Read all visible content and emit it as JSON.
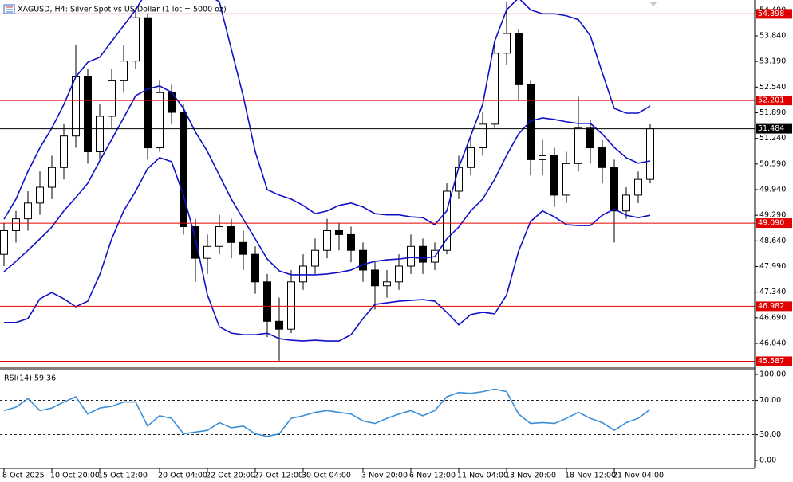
{
  "chart_data": [
    {
      "type": "candlestick",
      "title": "XAGUSD, H4:  Silver Spot vs US Dollar (1 lot = 5000 oz)",
      "categories": [
        "8 Oct 2025",
        null,
        null,
        null,
        "10 Oct 20:00",
        null,
        null,
        null,
        "15 Oct 12:00",
        null,
        null,
        null,
        null,
        "20 Oct 04:00",
        null,
        null,
        null,
        "22 Oct 20:00",
        null,
        null,
        null,
        "27 Oct 12:00",
        null,
        null,
        null,
        "30 Oct 04:00",
        null,
        null,
        null,
        null,
        "3 Nov 20:00",
        null,
        null,
        null,
        "6 Nov 12:00",
        null,
        null,
        null,
        "11 Nov 04:00",
        null,
        null,
        null,
        "13 Nov 20:00",
        null,
        null,
        null,
        null,
        "18 Nov 12:00",
        null,
        null,
        null,
        "21 Nov 04:00",
        null,
        null,
        null
      ],
      "open": [
        48.3,
        48.9,
        49.2,
        49.6,
        50.0,
        50.5,
        51.3,
        52.8,
        50.9,
        51.8,
        52.7,
        53.2,
        54.3,
        51.0,
        52.4,
        51.9,
        49.0,
        48.2,
        48.5,
        49.0,
        48.6,
        48.3,
        47.6,
        46.6,
        46.4,
        47.6,
        48.0,
        48.4,
        48.9,
        48.8,
        48.4,
        47.9,
        47.5,
        47.6,
        48.0,
        48.5,
        48.1,
        48.4,
        49.9,
        50.5,
        51.0,
        51.6,
        53.4,
        53.9,
        52.6,
        50.7,
        50.8,
        49.8,
        50.6,
        51.5,
        51.0,
        50.5,
        49.4,
        49.8,
        50.2
      ],
      "high": [
        49.1,
        49.4,
        49.9,
        50.4,
        50.8,
        51.6,
        53.6,
        53.0,
        52.1,
        53.0,
        53.6,
        54.55,
        54.4,
        52.7,
        52.6,
        52.1,
        49.2,
        48.8,
        49.3,
        49.2,
        48.9,
        48.5,
        47.8,
        47.2,
        47.9,
        48.3,
        48.7,
        49.2,
        49.1,
        49.0,
        48.6,
        48.1,
        47.9,
        48.3,
        48.8,
        48.7,
        48.6,
        50.1,
        50.8,
        51.3,
        51.9,
        53.6,
        54.7,
        54.0,
        52.7,
        51.2,
        51.0,
        50.9,
        52.3,
        51.7,
        51.2,
        50.7,
        50.0,
        50.4,
        51.6
      ],
      "low": [
        48.0,
        48.6,
        48.9,
        49.3,
        49.7,
        50.2,
        51.0,
        50.6,
        50.7,
        51.5,
        52.4,
        53.0,
        50.7,
        50.9,
        51.6,
        48.8,
        47.6,
        47.8,
        48.3,
        48.2,
        47.9,
        47.3,
        46.2,
        45.6,
        46.3,
        47.4,
        47.8,
        48.2,
        48.4,
        48.1,
        47.6,
        46.9,
        47.2,
        47.4,
        47.8,
        47.8,
        47.9,
        48.3,
        49.7,
        50.3,
        50.8,
        51.5,
        53.1,
        52.2,
        50.3,
        50.3,
        49.5,
        49.6,
        50.4,
        50.6,
        50.1,
        48.6,
        49.2,
        49.6,
        50.1
      ],
      "close": [
        48.9,
        49.2,
        49.6,
        50.0,
        50.5,
        51.3,
        52.8,
        50.9,
        51.8,
        52.7,
        53.2,
        54.3,
        51.0,
        52.4,
        51.9,
        49.0,
        48.2,
        48.5,
        49.0,
        48.6,
        48.3,
        47.6,
        46.6,
        46.4,
        47.6,
        48.0,
        48.4,
        48.9,
        48.8,
        48.4,
        47.9,
        47.5,
        47.6,
        48.0,
        48.5,
        48.1,
        48.4,
        49.9,
        50.5,
        51.0,
        51.6,
        53.4,
        53.9,
        52.6,
        50.7,
        50.8,
        49.8,
        50.6,
        51.5,
        51.0,
        50.5,
        49.4,
        49.8,
        50.2,
        51.484
      ],
      "bands": {
        "color": "#1010c8",
        "upper": [
          49.19,
          49.7,
          50.4,
          51.0,
          51.5,
          52.1,
          52.8,
          53.17,
          53.3,
          53.7,
          54.1,
          54.5,
          55.0,
          55.1,
          55.1,
          55.0,
          54.9,
          54.9,
          54.7,
          53.5,
          52.3,
          50.9,
          49.94,
          49.8,
          49.7,
          49.54,
          49.33,
          49.4,
          49.54,
          49.6,
          49.5,
          49.33,
          49.3,
          49.3,
          49.25,
          49.23,
          49.05,
          49.4,
          50.5,
          51.3,
          52.1,
          53.7,
          54.5,
          54.8,
          54.5,
          54.4,
          54.4,
          54.35,
          54.25,
          53.84,
          52.9,
          52.0,
          51.88,
          51.88,
          52.06
        ],
        "middle": [
          47.86,
          48.12,
          48.4,
          48.69,
          48.99,
          49.4,
          49.74,
          50.1,
          50.67,
          51.21,
          51.76,
          52.32,
          52.49,
          52.57,
          52.41,
          52.0,
          51.4,
          50.91,
          50.3,
          49.7,
          49.19,
          48.69,
          48.18,
          47.88,
          47.78,
          47.78,
          47.78,
          47.8,
          47.84,
          47.9,
          48.04,
          48.12,
          48.16,
          48.18,
          48.22,
          48.2,
          48.24,
          48.69,
          48.99,
          49.4,
          49.7,
          50.2,
          50.81,
          51.35,
          51.68,
          51.76,
          51.72,
          51.66,
          51.62,
          51.62,
          51.35,
          51.01,
          50.75,
          50.61,
          50.67
        ],
        "lower": [
          46.57,
          46.57,
          46.67,
          47.17,
          47.33,
          47.17,
          46.97,
          47.11,
          47.78,
          48.69,
          49.4,
          49.9,
          50.47,
          50.75,
          50.65,
          49.8,
          48.69,
          47.27,
          46.46,
          46.3,
          46.26,
          46.26,
          46.3,
          46.16,
          46.12,
          46.1,
          46.12,
          46.1,
          46.1,
          46.26,
          46.67,
          47.03,
          47.07,
          47.11,
          47.13,
          47.15,
          47.11,
          46.83,
          46.51,
          46.77,
          46.83,
          46.79,
          47.27,
          48.38,
          49.13,
          49.4,
          49.25,
          49.05,
          49.03,
          49.03,
          49.29,
          49.45,
          49.29,
          49.23,
          49.29
        ]
      },
      "up_color": "#ffffff",
      "down_color": "#000000",
      "wick_color": "#000000",
      "levels": [
        54.398,
        52.201,
        {
          "value": 49.09,
          "label": "49.090"
        },
        46.982,
        45.587
      ],
      "level_color": "#e00000",
      "current_price": 51.484,
      "current_color": "#000000",
      "ylim": [
        45.414,
        54.749
      ],
      "yticks": [
        {
          "value": 54.49,
          "label": "54.490"
        },
        {
          "value": 53.84,
          "label": "53.840"
        },
        {
          "value": 53.19,
          "label": "53.190"
        },
        {
          "value": 52.54,
          "label": "52.540"
        },
        {
          "value": 51.89,
          "label": "51.890"
        },
        {
          "value": 51.24,
          "label": "51.240"
        },
        {
          "value": 50.59,
          "label": "50.590"
        },
        {
          "value": 49.94,
          "label": "49.940"
        },
        {
          "value": 49.29,
          "label": "49.290"
        },
        {
          "value": 48.64,
          "label": "48.640"
        },
        {
          "value": 47.99,
          "label": "47.990"
        },
        {
          "value": 47.34,
          "label": "47.340"
        },
        {
          "value": 46.69,
          "label": "46.690"
        },
        {
          "value": 46.04,
          "label": "46.040"
        }
      ]
    },
    {
      "type": "line",
      "title": "RSI(14) 59.36",
      "color": "#3a8fd8",
      "values": [
        58,
        62,
        72,
        58,
        61,
        68,
        74,
        54,
        61,
        63,
        68,
        68,
        40,
        52,
        49,
        31,
        33,
        35,
        44,
        38,
        40,
        31,
        28,
        31,
        49,
        52,
        56,
        58,
        56,
        54,
        46,
        43,
        49,
        54,
        58,
        52,
        58,
        74,
        79,
        78,
        80,
        83,
        80,
        54,
        43,
        44,
        43,
        49,
        56,
        49,
        44,
        35,
        44,
        49,
        59.36
      ],
      "ylim": [
        -9.3,
        105.6
      ],
      "yticks": [
        {
          "value": 100,
          "label": "100.00"
        },
        {
          "value": 70,
          "label": "70.00"
        },
        {
          "value": 30,
          "label": "30.00"
        },
        {
          "value": 0,
          "label": "0.00"
        }
      ],
      "dashed_levels": [
        70,
        30
      ]
    }
  ]
}
